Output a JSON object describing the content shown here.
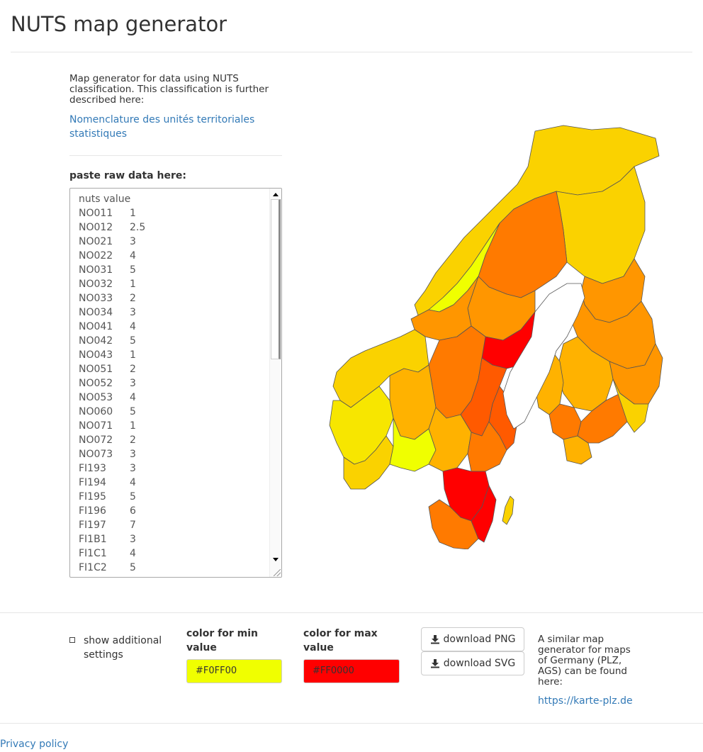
{
  "header": {
    "title": "NUTS map generator"
  },
  "intro": {
    "text": "Map generator for data using NUTS classification. This classification is further described here:",
    "link_text": "Nomenclature des unités territoriales statistiques"
  },
  "data_input": {
    "label": "paste raw data here:",
    "header_row": "nuts value",
    "rows": [
      [
        "NO011",
        "1"
      ],
      [
        "NO012",
        "2.5"
      ],
      [
        "NO021",
        "3"
      ],
      [
        "NO022",
        "4"
      ],
      [
        "NO031",
        "5"
      ],
      [
        "NO032",
        "1"
      ],
      [
        "NO033",
        "2"
      ],
      [
        "NO034",
        "3"
      ],
      [
        "NO041",
        "4"
      ],
      [
        "NO042",
        "5"
      ],
      [
        "NO043",
        "1"
      ],
      [
        "NO051",
        "2"
      ],
      [
        "NO052",
        "3"
      ],
      [
        "NO053",
        "4"
      ],
      [
        "NO060",
        "5"
      ],
      [
        "NO071",
        "1"
      ],
      [
        "NO072",
        "2"
      ],
      [
        "NO073",
        "3"
      ],
      [
        "FI193",
        "3"
      ],
      [
        "FI194",
        "4"
      ],
      [
        "FI195",
        "5"
      ],
      [
        "FI196",
        "6"
      ],
      [
        "FI197",
        "7"
      ],
      [
        "FI1B1",
        "3"
      ],
      [
        "FI1C1",
        "4"
      ],
      [
        "FI1C2",
        "5"
      ]
    ]
  },
  "map": {
    "region_colors": [
      "#F0FF00",
      "#F7E600",
      "#FAD200",
      "#FFB200",
      "#FF9600",
      "#FF7A00",
      "#FF5A00",
      "#FF0000"
    ],
    "outline_color": "#555555",
    "water_color": "#ffffff"
  },
  "settings": {
    "show_additional_label": "show additional settings",
    "min_color_label": "color for min value",
    "min_color_value": "#F0FF00",
    "max_color_label": "color for max value",
    "max_color_value": "#FF0000"
  },
  "downloads": {
    "png_label": "download PNG",
    "svg_label": "download SVG",
    "icon": "download-icon"
  },
  "similar": {
    "text": "A similar map generator for maps of Germany (PLZ, AGS) can be found here:",
    "link_text": "https://karte-plz.de"
  },
  "footer": {
    "privacy_label": "Privacy policy"
  }
}
